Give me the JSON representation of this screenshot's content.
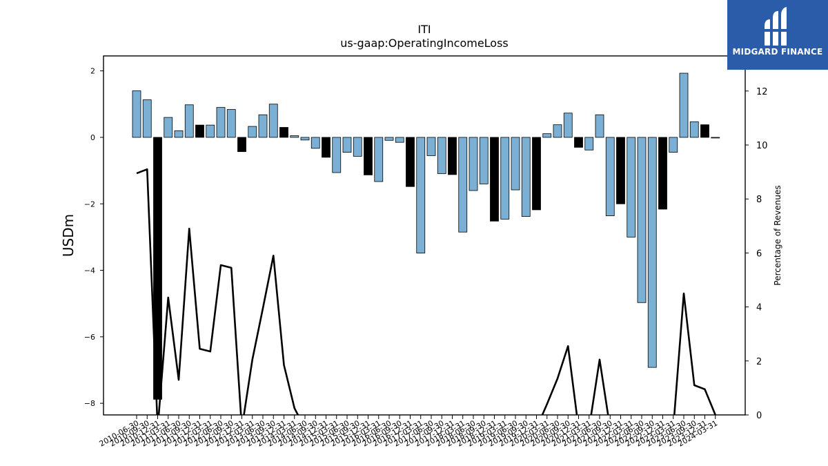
{
  "chart_data": {
    "type": "bar",
    "title": "ITI",
    "subtitle": "us-gaap:OperatingIncomeLoss",
    "ylabel": "USDm",
    "y2label": "Percentage of Revenues",
    "ylim": [
      -8.35,
      2.45
    ],
    "y2lim": [
      0,
      13.3
    ],
    "yticks": [
      2,
      0,
      -2,
      -4,
      -6,
      -8
    ],
    "y2ticks": [
      0,
      2,
      4,
      6,
      8,
      10,
      12
    ],
    "grid": false,
    "colors": {
      "blue": "#7bafd4",
      "black": "#000000"
    },
    "categories": [
      "2010-06-30",
      "2010-09-30",
      "2010-12-31",
      "2011-03-31",
      "2011-06-30",
      "2011-09-30",
      "2011-12-31",
      "2012-03-31",
      "2012-06-30",
      "2012-09-30",
      "2012-12-31",
      "2013-03-31",
      "2013-06-30",
      "2013-09-30",
      "2013-12-31",
      "2014-03-31",
      "2014-06-30",
      "2014-09-30",
      "2014-12-31",
      "2015-03-31",
      "2015-06-30",
      "2015-09-30",
      "2015-12-31",
      "2016-03-31",
      "2016-06-30",
      "2016-09-30",
      "2016-12-31",
      "2017-03-31",
      "2017-06-30",
      "2017-09-30",
      "2017-12-31",
      "2018-03-31",
      "2018-06-30",
      "2018-09-30",
      "2018-12-31",
      "2019-03-31",
      "2019-06-30",
      "2019-09-30",
      "2019-12-31",
      "2020-03-31",
      "2020-06-30",
      "2020-09-30",
      "2020-12-31",
      "2021-03-31",
      "2021-06-30",
      "2021-09-30",
      "2021-12-31",
      "2022-03-31",
      "2022-06-30",
      "2022-09-30",
      "2022-12-31",
      "2023-03-31",
      "2023-06-30",
      "2023-09-30",
      "2023-12-31",
      "2024-03-31"
    ],
    "xtick_labels": [
      "2010-06-30",
      "2010-09-30",
      "2010-12-31",
      "2011-03-31",
      "2011-06-30",
      "2011-09-30",
      "2011-12-31",
      "2012-03-31",
      "2012-06-30",
      "2012-09-30",
      "2012-12-31",
      "2013-03-31",
      "2013-06-30",
      "2013-09-30",
      "2013-12-31",
      "2014-03-31",
      "2014-06-30",
      "2014-09-30",
      "2014-12-31",
      "2015-03-31",
      "2015-06-30",
      "2015-09-30",
      "2015-12-31",
      "2016-03-31",
      "2016-06-30",
      "2016-09-30",
      "2016-12-31",
      "2017-03-31",
      "2017-06-30",
      "2017-09-30",
      "2017-12-31",
      "2018-03-31",
      "2018-06-30",
      "2018-09-30",
      "2018-12-31",
      "2019-03-31",
      "2019-06-30",
      "2019-09-30",
      "2019-12-31",
      "2020-03-31",
      "2020-06-30",
      "2020-09-30",
      "2020-12-31",
      "2021-03-31",
      "2021-06-30",
      "2021-09-30",
      "2021-12-31",
      "2022-03-31",
      "2022-06-30",
      "2022-09-30",
      "2022-12-31",
      "2023-03-31",
      "2023-06-30",
      "2023-09-30",
      "2023-12-31",
      "2024-03-31"
    ],
    "values": [
      1.4,
      1.13,
      -7.88,
      0.6,
      0.2,
      0.98,
      0.37,
      0.37,
      0.9,
      0.84,
      -0.43,
      0.33,
      0.68,
      1.0,
      0.3,
      0.05,
      -0.08,
      -0.33,
      -0.6,
      -1.06,
      -0.45,
      -0.57,
      -1.13,
      -1.33,
      -0.09,
      -0.15,
      -1.48,
      -3.48,
      -0.55,
      -1.09,
      -1.12,
      -2.85,
      -1.6,
      -1.4,
      -2.52,
      -2.46,
      -1.58,
      -2.38,
      -2.18,
      0.11,
      0.38,
      0.73,
      -0.3,
      -0.38,
      0.68,
      -2.36,
      -2.0,
      -3.0,
      -4.97,
      -6.92,
      -2.16,
      -0.45,
      1.93,
      0.47,
      0.38,
      -0.02
    ],
    "bar_colors": [
      "blue",
      "blue",
      "black",
      "blue",
      "blue",
      "blue",
      "black",
      "blue",
      "blue",
      "blue",
      "black",
      "blue",
      "blue",
      "blue",
      "black",
      "blue",
      "blue",
      "blue",
      "black",
      "blue",
      "blue",
      "blue",
      "black",
      "blue",
      "blue",
      "blue",
      "black",
      "blue",
      "blue",
      "blue",
      "black",
      "blue",
      "blue",
      "blue",
      "black",
      "blue",
      "blue",
      "blue",
      "black",
      "blue",
      "blue",
      "blue",
      "black",
      "blue",
      "blue",
      "blue",
      "black",
      "blue",
      "blue",
      "blue",
      "black",
      "blue",
      "blue",
      "blue",
      "black",
      "blue"
    ],
    "pct_line": [
      8.95,
      9.1,
      -0.5,
      4.35,
      1.3,
      6.9,
      2.45,
      2.35,
      5.55,
      5.45,
      -0.5,
      2.05,
      3.95,
      5.9,
      1.85,
      0.25,
      -0.5,
      -0.5,
      -0.5,
      -0.5,
      -0.5,
      -0.5,
      -0.5,
      -0.5,
      -0.5,
      -0.5,
      -0.5,
      -0.5,
      -0.5,
      -0.5,
      -0.5,
      -0.5,
      -0.5,
      -0.5,
      -0.5,
      -0.5,
      -0.5,
      -0.5,
      -0.5,
      0.4,
      1.35,
      2.55,
      -0.5,
      -0.5,
      2.05,
      -0.5,
      -0.5,
      -0.5,
      -0.5,
      -0.5,
      -0.5,
      -0.5,
      4.5,
      1.1,
      0.95,
      0.0
    ]
  },
  "logo": {
    "text": "MIDGARD FINANCE",
    "icon": "midgard-finance-logo-icon"
  }
}
